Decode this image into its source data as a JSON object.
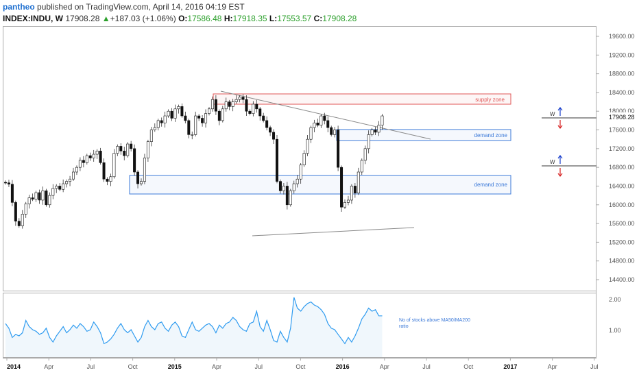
{
  "header": {
    "author": "pantheo",
    "published": "published on TradingView.com, April 14, 2016 04:19 EST",
    "symbol": "INDEX:INDU, W",
    "last": "17908.28",
    "change_arrow": "▲",
    "change": "+187.03 (+1.06%)",
    "open_label": "O:",
    "open": "17586.48",
    "high_label": "H:",
    "high": "17918.35",
    "low_label": "L:",
    "low": "17553.57",
    "close_label": "C:",
    "close": "17908.28"
  },
  "chart_data": {
    "type": "candlestick",
    "price_axis": [
      "19600.00",
      "19200.00",
      "18800.00",
      "18400.00",
      "18000.00",
      "17600.00",
      "17200.00",
      "16800.00",
      "16400.00",
      "16000.00",
      "15600.00",
      "15200.00",
      "14800.00",
      "14400.00"
    ],
    "last_price_label": "17908.28",
    "indicator_axis": [
      "2.00",
      "1.00"
    ],
    "time_axis": [
      "2014",
      "Apr",
      "Jul",
      "Oct",
      "2015",
      "Apr",
      "Jul",
      "Oct",
      "2016",
      "Apr",
      "Jul",
      "Oct",
      "2017",
      "Apr",
      "Jul"
    ],
    "zones": [
      {
        "label": "supply zone",
        "color": "#e05555"
      },
      {
        "label": "demand zone",
        "color": "#3a78d8"
      },
      {
        "label": "demand zone",
        "color": "#3a78d8"
      }
    ],
    "markers": [
      {
        "label": "W"
      },
      {
        "label": "W"
      }
    ],
    "indicator_note": "No of stocks above MA50/MA200 ratio",
    "candle_closes": [
      16470,
      16440,
      16050,
      15650,
      15550,
      15800,
      16020,
      16150,
      16120,
      16260,
      16100,
      16300,
      16000,
      16200,
      16350,
      16400,
      16330,
      16450,
      16500,
      16550,
      16700,
      16800,
      16950,
      16900,
      17050,
      17000,
      17080,
      17150,
      16900,
      16550,
      16500,
      16600,
      17100,
      17250,
      17150,
      17050,
      17300,
      17200,
      16700,
      16450,
      16500,
      17000,
      17350,
      17600,
      17650,
      17800,
      17750,
      17900,
      18000,
      17850,
      18050,
      18100,
      17900,
      17800,
      17500,
      17500,
      17900,
      17850,
      17750,
      17950,
      18050,
      18250,
      18000,
      17800,
      18050,
      18200,
      18100,
      18200,
      18250,
      18300,
      18250,
      18000,
      17950,
      18150,
      18050,
      17900,
      17800,
      17650,
      17550,
      17400,
      16500,
      16300,
      16400,
      16000,
      16300,
      16450,
      16550,
      16850,
      17100,
      17400,
      17650,
      17750,
      17700,
      17900,
      17800,
      17650,
      17500,
      17600,
      16800,
      15950,
      16050,
      16100,
      16400,
      16250,
      16700,
      16950,
      17200,
      17500,
      17600,
      17550,
      17700,
      17900
    ]
  }
}
